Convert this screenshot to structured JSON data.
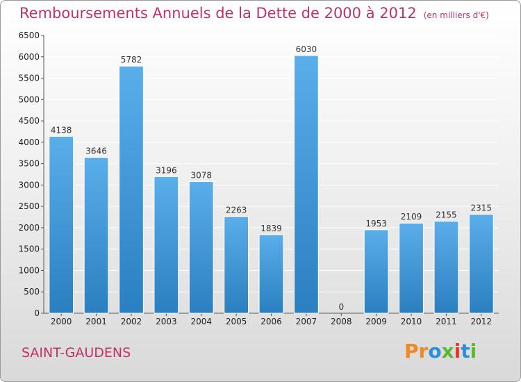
{
  "header": {
    "title": "Remboursements Annuels de la Dette de 2000 à 2012",
    "unit": "(en milliers d'€)"
  },
  "footer": {
    "commune": "SAINT-GAUDENS",
    "logo_text": "Proxiti",
    "logo_colors": [
      "#f08a1e",
      "#f08a1e",
      "#2a8fd8",
      "#5cb82e",
      "#e53a2b",
      "#2a8fd8",
      "#5cb82e"
    ]
  },
  "colors": {
    "bar_top": "#5aaeea",
    "bar_bottom": "#2a7fc0",
    "title": "#c0306a",
    "grid": "#ffffff"
  },
  "chart_data": {
    "type": "bar",
    "title": "Remboursements Annuels de la Dette de 2000 à 2012",
    "subtitle": "(en milliers d'€)",
    "categories": [
      "2000",
      "2001",
      "2002",
      "2003",
      "2004",
      "2005",
      "2006",
      "2007",
      "2008",
      "2009",
      "2010",
      "2011",
      "2012"
    ],
    "values": [
      4138,
      3646,
      5782,
      3196,
      3078,
      2263,
      1839,
      6030,
      0,
      1953,
      2109,
      2155,
      2315
    ],
    "ylim": [
      0,
      6500
    ],
    "yticks": [
      0,
      500,
      1000,
      1500,
      2000,
      2500,
      3000,
      3500,
      4000,
      4500,
      5000,
      5500,
      6000,
      6500
    ],
    "grid": true,
    "data_labels": true
  }
}
